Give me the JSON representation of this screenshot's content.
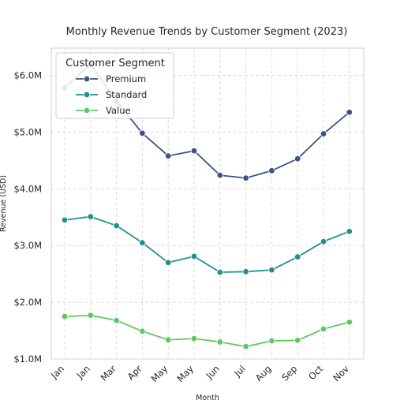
{
  "chart_data": {
    "type": "line",
    "title": "Monthly Revenue Trends by Customer Segment (2023)",
    "xlabel": "Month",
    "ylabel": "Revenue (USD)",
    "categories": [
      "Jan",
      "Jan",
      "Mar",
      "Apr",
      "May",
      "May",
      "Jun",
      "Jul",
      "Aug",
      "Sep",
      "Oct",
      "Nov"
    ],
    "yticks": [
      1000000,
      2000000,
      3000000,
      4000000,
      5000000,
      6000000
    ],
    "ytick_labels": [
      "$1.0M",
      "$2.0M",
      "$3.0M",
      "$4.0M",
      "$5.0M",
      "$6.0M"
    ],
    "ylim": [
      1000000,
      6480000
    ],
    "grid": true,
    "legend": {
      "title": "Customer Segment",
      "placement": "top-left"
    },
    "series": [
      {
        "name": "Premium",
        "color": "#3b528b",
        "values": [
          5780000,
          6200000,
          5540000,
          4980000,
          4580000,
          4670000,
          4240000,
          4190000,
          4320000,
          4530000,
          4970000,
          5350000
        ]
      },
      {
        "name": "Standard",
        "color": "#21918c",
        "values": [
          3450000,
          3510000,
          3350000,
          3050000,
          2700000,
          2810000,
          2530000,
          2540000,
          2570000,
          2800000,
          3070000,
          3250000
        ]
      },
      {
        "name": "Value",
        "color": "#5ec962",
        "values": [
          1750000,
          1770000,
          1680000,
          1490000,
          1340000,
          1360000,
          1300000,
          1220000,
          1320000,
          1330000,
          1530000,
          1650000
        ]
      }
    ]
  }
}
